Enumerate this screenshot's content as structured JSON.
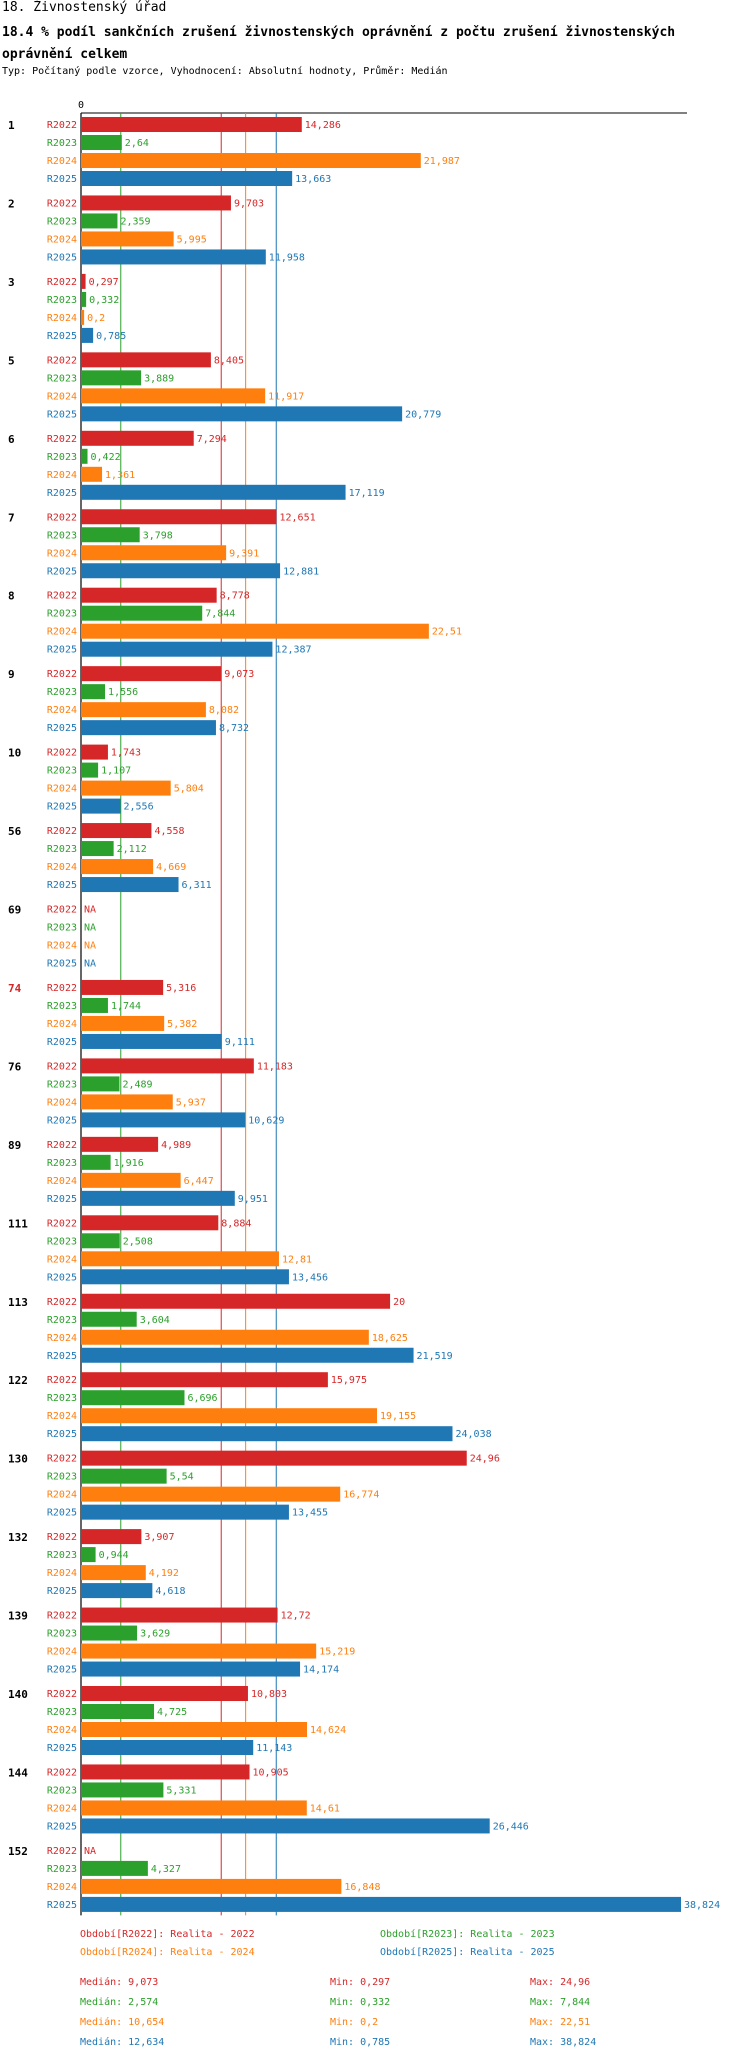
{
  "header": {
    "title": "18. Živnostenský úřad",
    "subtitle": "18.4 % podíl sankčních zrušení živnostenských oprávnění z počtu zrušení živnostenských oprávnění  celkem",
    "type_line": "Typ: Počítaný podle vzorce, Vyhodnocení: Absolutní hodnoty, Průměr: Medián"
  },
  "colors": {
    "R2022": "#d62728",
    "R2023": "#2ca02c",
    "R2024": "#ff7f0e",
    "R2025": "#1f77b4",
    "highlight": "#d62728"
  },
  "chart_data": {
    "type": "bar",
    "orientation": "horizontal",
    "axis_zero_label": "0",
    "series_names": [
      "R2022",
      "R2023",
      "R2024",
      "R2025"
    ],
    "groups": [
      {
        "label": "1",
        "highlight": false,
        "values": [
          14.286,
          2.64,
          21.987,
          13.663
        ],
        "labels": [
          "14,286",
          "2,64",
          "21,987",
          "13,663"
        ]
      },
      {
        "label": "2",
        "highlight": false,
        "values": [
          9.703,
          2.359,
          5.995,
          11.958
        ],
        "labels": [
          "9,703",
          "2,359",
          "5,995",
          "11,958"
        ]
      },
      {
        "label": "3",
        "highlight": false,
        "values": [
          0.297,
          0.332,
          0.2,
          0.785
        ],
        "labels": [
          "0,297",
          "0,332",
          "0,2",
          "0,785"
        ]
      },
      {
        "label": "5",
        "highlight": false,
        "values": [
          8.405,
          3.889,
          11.917,
          20.779
        ],
        "labels": [
          "8,405",
          "3,889",
          "11,917",
          "20,779"
        ]
      },
      {
        "label": "6",
        "highlight": false,
        "values": [
          7.294,
          0.422,
          1.361,
          17.119
        ],
        "labels": [
          "7,294",
          "0,422",
          "1,361",
          "17,119"
        ]
      },
      {
        "label": "7",
        "highlight": false,
        "values": [
          12.651,
          3.798,
          9.391,
          12.881
        ],
        "labels": [
          "12,651",
          "3,798",
          "9,391",
          "12,881"
        ]
      },
      {
        "label": "8",
        "highlight": false,
        "values": [
          8.778,
          7.844,
          22.51,
          12.387
        ],
        "labels": [
          "8,778",
          "7,844",
          "22,51",
          "12,387"
        ]
      },
      {
        "label": "9",
        "highlight": false,
        "values": [
          9.073,
          1.556,
          8.082,
          8.732
        ],
        "labels": [
          "9,073",
          "1,556",
          "8,082",
          "8,732"
        ]
      },
      {
        "label": "10",
        "highlight": false,
        "values": [
          1.743,
          1.107,
          5.804,
          2.556
        ],
        "labels": [
          "1,743",
          "1,107",
          "5,804",
          "2,556"
        ]
      },
      {
        "label": "56",
        "highlight": false,
        "values": [
          4.558,
          2.112,
          4.669,
          6.311
        ],
        "labels": [
          "4,558",
          "2,112",
          "4,669",
          "6,311"
        ]
      },
      {
        "label": "69",
        "highlight": false,
        "values": [
          null,
          null,
          null,
          null
        ],
        "labels": [
          "NA",
          "NA",
          "NA",
          "NA"
        ]
      },
      {
        "label": "74",
        "highlight": true,
        "values": [
          5.316,
          1.744,
          5.382,
          9.111
        ],
        "labels": [
          "5,316",
          "1,744",
          "5,382",
          "9,111"
        ]
      },
      {
        "label": "76",
        "highlight": false,
        "values": [
          11.183,
          2.489,
          5.937,
          10.629
        ],
        "labels": [
          "11,183",
          "2,489",
          "5,937",
          "10,629"
        ]
      },
      {
        "label": "89",
        "highlight": false,
        "values": [
          4.989,
          1.916,
          6.447,
          9.951
        ],
        "labels": [
          "4,989",
          "1,916",
          "6,447",
          "9,951"
        ]
      },
      {
        "label": "111",
        "highlight": false,
        "values": [
          8.884,
          2.508,
          12.81,
          13.456
        ],
        "labels": [
          "8,884",
          "2,508",
          "12,81",
          "13,456"
        ]
      },
      {
        "label": "113",
        "highlight": false,
        "values": [
          20,
          3.604,
          18.625,
          21.519
        ],
        "labels": [
          "20",
          "3,604",
          "18,625",
          "21,519"
        ]
      },
      {
        "label": "122",
        "highlight": false,
        "values": [
          15.975,
          6.696,
          19.155,
          24.038
        ],
        "labels": [
          "15,975",
          "6,696",
          "19,155",
          "24,038"
        ]
      },
      {
        "label": "130",
        "highlight": false,
        "values": [
          24.96,
          5.54,
          16.774,
          13.455
        ],
        "labels": [
          "24,96",
          "5,54",
          "16,774",
          "13,455"
        ]
      },
      {
        "label": "132",
        "highlight": false,
        "values": [
          3.907,
          0.944,
          4.192,
          4.618
        ],
        "labels": [
          "3,907",
          "0,944",
          "4,192",
          "4,618"
        ]
      },
      {
        "label": "139",
        "highlight": false,
        "values": [
          12.72,
          3.629,
          15.219,
          14.174
        ],
        "labels": [
          "12,72",
          "3,629",
          "15,219",
          "14,174"
        ]
      },
      {
        "label": "140",
        "highlight": false,
        "values": [
          10.803,
          4.725,
          14.624,
          11.143
        ],
        "labels": [
          "10,803",
          "4,725",
          "14,624",
          "11,143"
        ]
      },
      {
        "label": "144",
        "highlight": false,
        "values": [
          10.905,
          5.331,
          14.61,
          26.446
        ],
        "labels": [
          "10,905",
          "5,331",
          "14,61",
          "26,446"
        ]
      },
      {
        "label": "152",
        "highlight": false,
        "values": [
          null,
          4.327,
          16.848,
          38.824
        ],
        "labels": [
          "NA",
          "4,327",
          "16,848",
          "38,824"
        ]
      }
    ],
    "medians": [
      9.073,
      2.574,
      10.654,
      12.634
    ],
    "xlim": [
      0,
      38.824
    ]
  },
  "legend": {
    "periods": [
      "Období[R2022]: Realita - 2022",
      "Období[R2023]: Realita - 2023",
      "Období[R2024]: Realita - 2024",
      "Období[R2025]: Realita - 2025"
    ],
    "stats": [
      {
        "median": "Medián: 9,073",
        "min": "Min: 0,297",
        "max": "Max: 24,96"
      },
      {
        "median": "Medián: 2,574",
        "min": "Min: 0,332",
        "max": "Max: 7,844"
      },
      {
        "median": "Medián: 10,654",
        "min": "Min: 0,2",
        "max": "Max: 22,51"
      },
      {
        "median": "Medián: 12,634",
        "min": "Min: 0,785",
        "max": "Max: 38,824"
      }
    ]
  }
}
